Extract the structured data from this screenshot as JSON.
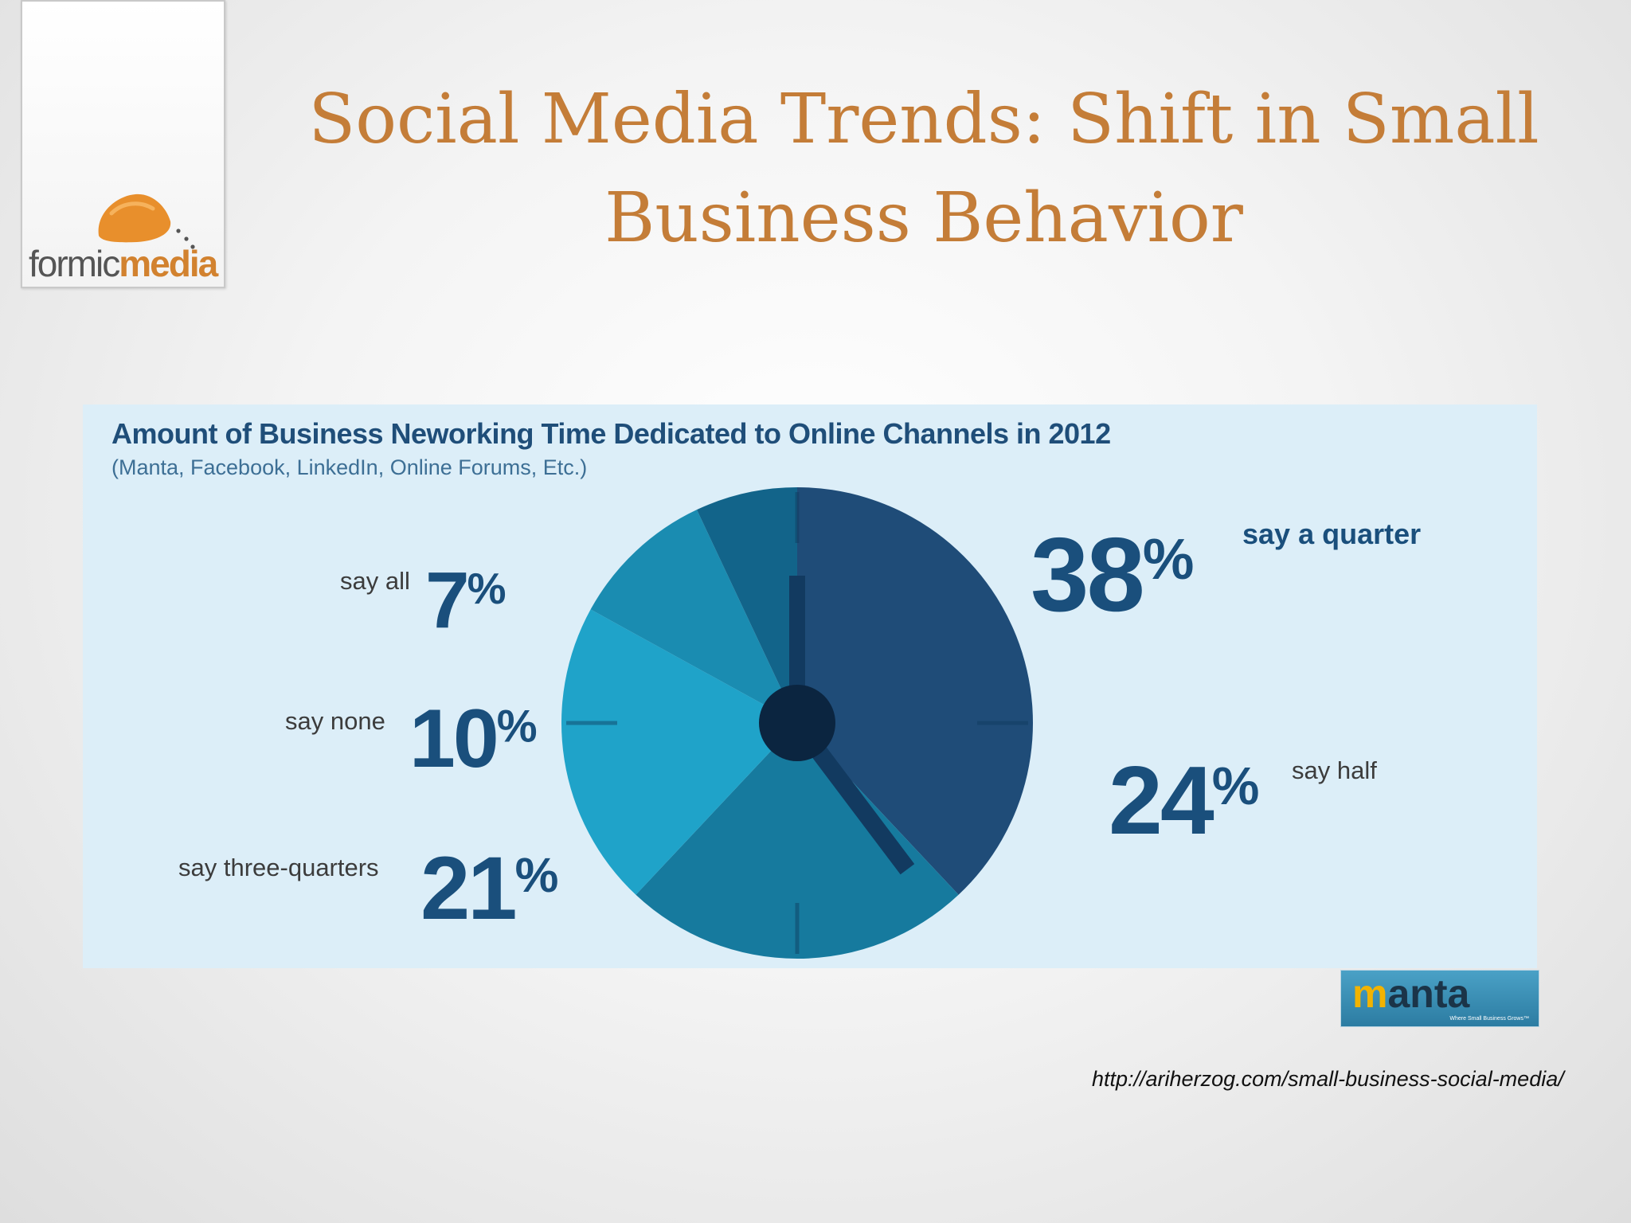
{
  "slide": {
    "title": "Social Media Trends: Shift in Small Business Behavior",
    "source_url": "http://ariherzog.com/small-business-social-media/"
  },
  "logo": {
    "part1": "formic",
    "part2": "media",
    "colors": {
      "orange": "#e88f2c",
      "gray": "#555555"
    }
  },
  "manta": {
    "wordmark_m": "m",
    "wordmark_rest": "anta",
    "tagline": "Where Small Business Grows™"
  },
  "colors": {
    "title": "#c47d38",
    "panel": "#dceef8",
    "label_big": "#1a4f7c"
  },
  "chart_data": {
    "type": "pie",
    "title": "Amount of Business Neworking Time Dedicated to Online Channels in 2012",
    "subtitle": "(Manta, Facebook, LinkedIn, Online Forums, Etc.)",
    "slices": [
      {
        "label": "say a quarter",
        "value": 38,
        "display": "38",
        "color": "#1f4c78"
      },
      {
        "label": "say half",
        "value": 24,
        "display": "24",
        "color": "#167a9e"
      },
      {
        "label": "say three-quarters",
        "value": 21,
        "display": "21",
        "color": "#1fa3c9"
      },
      {
        "label": "say none",
        "value": 10,
        "display": "10",
        "color": "#1a8cb1"
      },
      {
        "label": "say all",
        "value": 7,
        "display": "7",
        "color": "#12648a"
      }
    ],
    "start_angle_deg": 0,
    "direction": "clockwise",
    "style": "clock face"
  }
}
